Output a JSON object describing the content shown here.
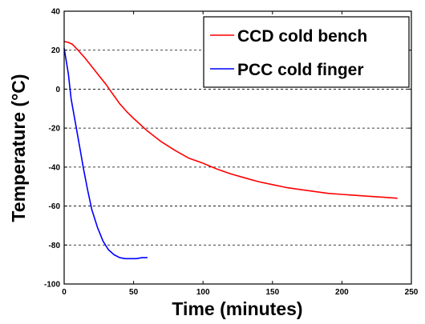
{
  "chart_data": {
    "type": "line",
    "title": "",
    "xlabel": "Time (minutes)",
    "ylabel": "Temperature (°C)",
    "xlim": [
      0,
      250
    ],
    "ylim": [
      -100,
      40
    ],
    "xticks": [
      0,
      50,
      100,
      150,
      200,
      250
    ],
    "yticks": [
      40,
      20,
      0,
      -20,
      -40,
      -60,
      -80,
      -100
    ],
    "ygrid": true,
    "legend_position": "top-right",
    "series": [
      {
        "name": "CCD cold bench",
        "color": "#ff0000",
        "x": [
          0,
          3,
          6,
          10,
          15,
          20,
          25,
          30,
          35,
          40,
          45,
          50,
          60,
          70,
          80,
          90,
          100,
          110,
          120,
          130,
          140,
          150,
          160,
          170,
          180,
          190,
          200,
          210,
          220,
          230,
          240
        ],
        "y": [
          24.5,
          24,
          23,
          20,
          16,
          11.5,
          7,
          2.5,
          -2.5,
          -7.5,
          -11.5,
          -15,
          -21.5,
          -27,
          -31.5,
          -35.5,
          -38,
          -41,
          -43.5,
          -45.5,
          -47.5,
          -49,
          -50.5,
          -51.5,
          -52.5,
          -53.5,
          -54,
          -54.5,
          -55,
          -55.5,
          -56
        ]
      },
      {
        "name": "PCC cold finger",
        "color": "#0000ff",
        "x": [
          0,
          3,
          5,
          8,
          11,
          14,
          17,
          20,
          24,
          28,
          32,
          36,
          40,
          44,
          48,
          52,
          56,
          60
        ],
        "y": [
          21,
          8,
          -5,
          -17,
          -29,
          -41,
          -52,
          -62,
          -71,
          -78,
          -82.5,
          -85,
          -86.5,
          -87,
          -87,
          -87,
          -86.5,
          -86.5
        ]
      }
    ]
  }
}
